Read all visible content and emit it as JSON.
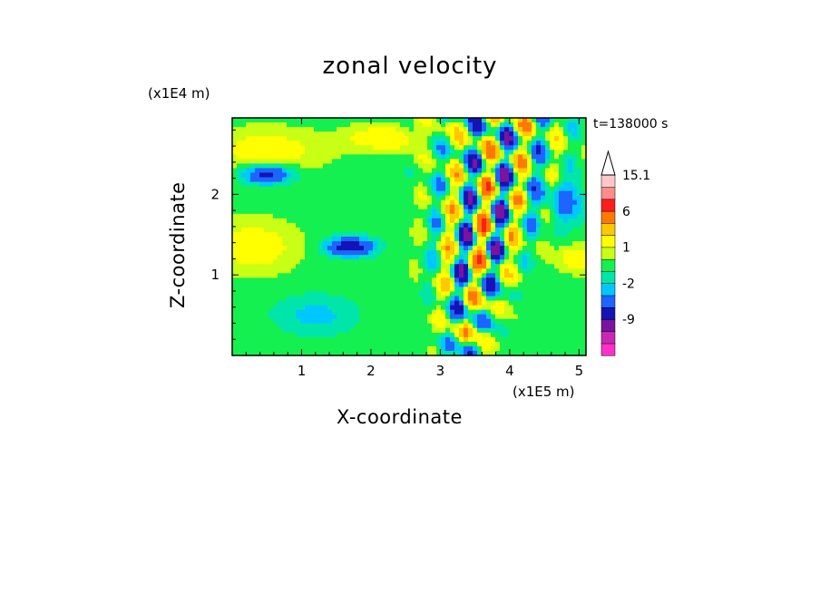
{
  "chart_data": {
    "type": "heatmap",
    "title": "zonal velocity",
    "xlabel": "X-coordinate",
    "ylabel": "Z-coordinate",
    "x_unit": "(x1E5 m)",
    "y_unit": "(x1E4 m)",
    "time_label": "t=138000 s",
    "xlim": [
      0,
      5.1
    ],
    "ylim": [
      0,
      2.95
    ],
    "x_ticks": [
      "1",
      "2",
      "3",
      "4",
      "5"
    ],
    "x_tick_values": [
      1,
      2,
      3,
      4,
      5
    ],
    "y_ticks": [
      "1",
      "2"
    ],
    "y_tick_values": [
      1,
      2
    ],
    "colorbar": {
      "labels": [
        "15.1",
        "6",
        "1",
        "-2",
        "-9"
      ],
      "label_values": [
        15.1,
        6,
        1,
        -2,
        -9
      ],
      "levels": [
        -15,
        -12,
        -9,
        -6,
        -4,
        -2,
        -1,
        0,
        1,
        2,
        4,
        6,
        9,
        12,
        15.1
      ],
      "colors": [
        "#ff30c8",
        "#c828b4",
        "#7814a0",
        "#1414b4",
        "#1e64ff",
        "#00c8ff",
        "#00e6aa",
        "#14f050",
        "#c8ff14",
        "#ffff00",
        "#ffc800",
        "#ff7800",
        "#ff1e1e",
        "#ff8c8c",
        "#ffc8c8"
      ]
    },
    "grid": false
  }
}
